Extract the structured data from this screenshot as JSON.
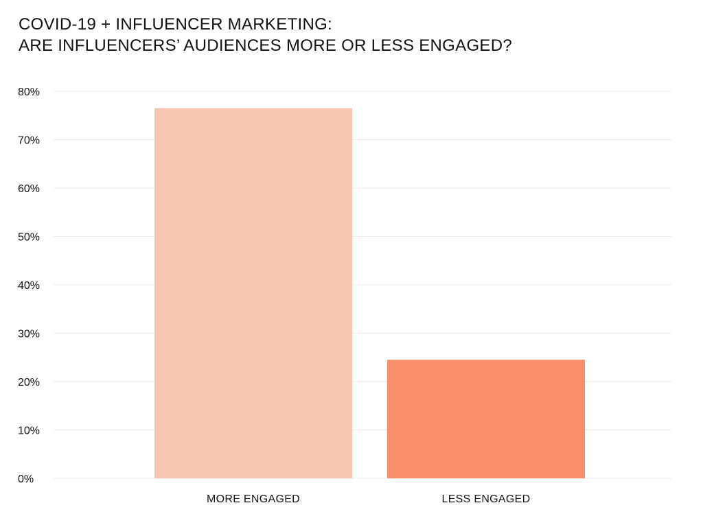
{
  "chart_data": {
    "type": "bar",
    "title_lines": [
      "COVID-19 + INFLUENCER MARKETING:",
      "ARE INFLUENCERS’ AUDIENCES MORE OR LESS ENGAGED?"
    ],
    "categories": [
      "MORE ENGAGED",
      "LESS ENGAGED"
    ],
    "values": [
      76.5,
      24.5
    ],
    "bar_colors": [
      "#F8C6B0",
      "#F98E6A"
    ],
    "ylim": [
      0,
      80
    ],
    "yticks": [
      0,
      10,
      20,
      30,
      40,
      50,
      60,
      70,
      80
    ],
    "ytick_labels": [
      "0%",
      "10%",
      "20%",
      "30%",
      "40%",
      "50%",
      "60%",
      "70%",
      "80%"
    ],
    "grid": true,
    "grid_color": "#EBEBEB",
    "xlabel": "",
    "ylabel": ""
  }
}
